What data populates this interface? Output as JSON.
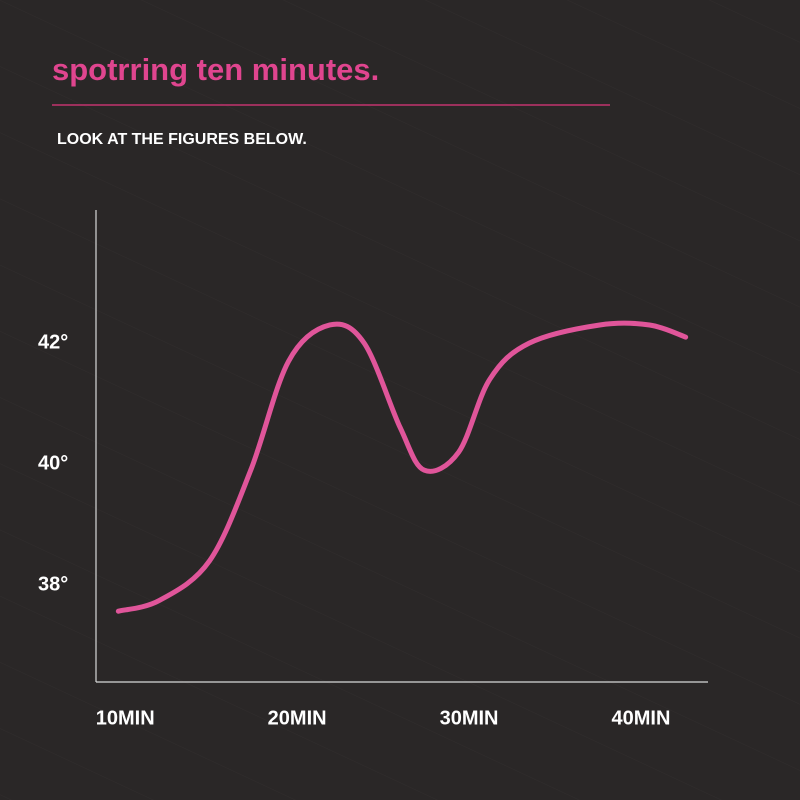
{
  "chart_data": {
    "type": "line",
    "title": "spotrring ten minutes.",
    "subtitle": "LOOK AT THE FIGURES BELOW.",
    "x": [
      9.6,
      12.0,
      14.9,
      17.3,
      19.5,
      21.9,
      23.9,
      26.0,
      27.4,
      29.4,
      31.2,
      33.5,
      37.6,
      40.5,
      42.6
    ],
    "series": [
      {
        "color": "#e0559a",
        "values": [
          37.57,
          37.75,
          38.4,
          39.9,
          41.7,
          42.3,
          42.0,
          40.6,
          39.9,
          40.2,
          41.4,
          42.0,
          42.3,
          42.3,
          42.1
        ]
      }
    ],
    "xlim": [
      8.3,
      43.9
    ],
    "ylim": [
      36.4,
      44.2
    ],
    "xticks": [
      {
        "value": 10,
        "label": "10MIN"
      },
      {
        "value": 20,
        "label": "20MIN"
      },
      {
        "value": 30,
        "label": "30MIN"
      },
      {
        "value": 40,
        "label": "40MIN"
      }
    ],
    "yticks": [
      {
        "value": 38,
        "label": "38°"
      },
      {
        "value": 40,
        "label": "40°"
      },
      {
        "value": 42,
        "label": "42°"
      }
    ],
    "grid": false
  }
}
